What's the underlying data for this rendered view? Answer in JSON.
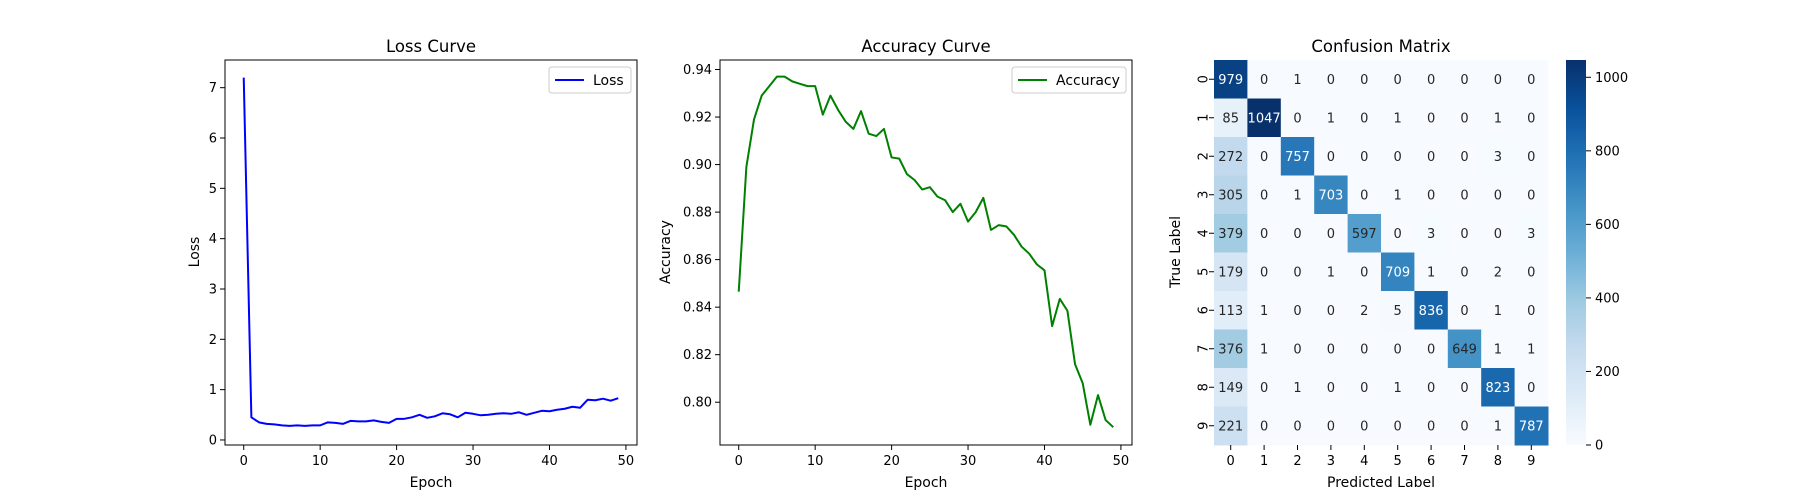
{
  "chart_data": [
    {
      "type": "line",
      "title": "Loss Curve",
      "xlabel": "Epoch",
      "ylabel": "Loss",
      "xlim": [
        -2.45,
        51.45
      ],
      "ylim": [
        -0.1,
        7.55
      ],
      "xticks": [
        0,
        10,
        20,
        30,
        40,
        50
      ],
      "yticks": [
        0,
        1,
        2,
        3,
        4,
        5,
        6,
        7
      ],
      "legend_position": "upper right",
      "grid": false,
      "series": [
        {
          "name": "Loss",
          "color": "#0000ff",
          "x": [
            0,
            1,
            2,
            3,
            4,
            5,
            6,
            7,
            8,
            9,
            10,
            11,
            12,
            13,
            14,
            15,
            16,
            17,
            18,
            19,
            20,
            21,
            22,
            23,
            24,
            25,
            26,
            27,
            28,
            29,
            30,
            31,
            32,
            33,
            34,
            35,
            36,
            37,
            38,
            39,
            40,
            41,
            42,
            43,
            44,
            45,
            46,
            47,
            48,
            49
          ],
          "y": [
            7.2,
            0.45,
            0.35,
            0.32,
            0.31,
            0.29,
            0.28,
            0.29,
            0.28,
            0.29,
            0.29,
            0.35,
            0.34,
            0.32,
            0.38,
            0.37,
            0.37,
            0.39,
            0.36,
            0.34,
            0.42,
            0.42,
            0.45,
            0.5,
            0.44,
            0.47,
            0.53,
            0.51,
            0.45,
            0.54,
            0.52,
            0.49,
            0.5,
            0.52,
            0.53,
            0.52,
            0.55,
            0.5,
            0.54,
            0.58,
            0.57,
            0.6,
            0.62,
            0.66,
            0.64,
            0.8,
            0.79,
            0.82,
            0.78,
            0.83
          ]
        }
      ]
    },
    {
      "type": "line",
      "title": "Accuracy Curve",
      "xlabel": "Epoch",
      "ylabel": "Accuracy",
      "xlim": [
        -2.45,
        51.45
      ],
      "ylim": [
        0.782,
        0.944
      ],
      "xticks": [
        0,
        10,
        20,
        30,
        40,
        50
      ],
      "yticks": [
        0.8,
        0.82,
        0.84,
        0.86,
        0.88,
        0.9,
        0.92,
        0.94
      ],
      "ytick_labels": [
        "0.80",
        "0.82",
        "0.84",
        "0.86",
        "0.88",
        "0.90",
        "0.92",
        "0.94"
      ],
      "legend_position": "upper right",
      "grid": false,
      "series": [
        {
          "name": "Accuracy",
          "color": "#008000",
          "x": [
            0,
            1,
            2,
            3,
            4,
            5,
            6,
            7,
            8,
            9,
            10,
            11,
            12,
            13,
            14,
            15,
            16,
            17,
            18,
            19,
            20,
            21,
            22,
            23,
            24,
            25,
            26,
            27,
            28,
            29,
            30,
            31,
            32,
            33,
            34,
            35,
            36,
            37,
            38,
            39,
            40,
            41,
            42,
            43,
            44,
            45,
            46,
            47,
            48,
            49
          ],
          "y": [
            0.8465,
            0.899,
            0.919,
            0.929,
            0.933,
            0.937,
            0.937,
            0.935,
            0.934,
            0.933,
            0.933,
            0.921,
            0.929,
            0.923,
            0.918,
            0.915,
            0.9225,
            0.913,
            0.912,
            0.915,
            0.903,
            0.9025,
            0.896,
            0.8935,
            0.8895,
            0.8905,
            0.8865,
            0.885,
            0.88,
            0.8835,
            0.876,
            0.88,
            0.886,
            0.8725,
            0.8745,
            0.874,
            0.8705,
            0.8655,
            0.8625,
            0.858,
            0.8555,
            0.832,
            0.8435,
            0.8385,
            0.816,
            0.808,
            0.7905,
            0.803,
            0.7925,
            0.7895
          ]
        }
      ]
    },
    {
      "type": "heatmap",
      "title": "Confusion Matrix",
      "xlabel": "Predicted Label",
      "ylabel": "True Label",
      "x_categories": [
        "0",
        "1",
        "2",
        "3",
        "4",
        "5",
        "6",
        "7",
        "8",
        "9"
      ],
      "y_categories": [
        "0",
        "1",
        "2",
        "3",
        "4",
        "5",
        "6",
        "7",
        "8",
        "9"
      ],
      "values": [
        [
          979,
          0,
          1,
          0,
          0,
          0,
          0,
          0,
          0,
          0
        ],
        [
          85,
          1047,
          0,
          1,
          0,
          1,
          0,
          0,
          1,
          0
        ],
        [
          272,
          0,
          757,
          0,
          0,
          0,
          0,
          0,
          3,
          0
        ],
        [
          305,
          0,
          1,
          703,
          0,
          1,
          0,
          0,
          0,
          0
        ],
        [
          379,
          0,
          0,
          0,
          597,
          0,
          3,
          0,
          0,
          3
        ],
        [
          179,
          0,
          0,
          1,
          0,
          709,
          1,
          0,
          2,
          0
        ],
        [
          113,
          1,
          0,
          0,
          2,
          5,
          836,
          0,
          1,
          0
        ],
        [
          376,
          1,
          0,
          0,
          0,
          0,
          0,
          649,
          1,
          1
        ],
        [
          149,
          0,
          1,
          0,
          0,
          1,
          0,
          0,
          823,
          0
        ],
        [
          221,
          0,
          0,
          0,
          0,
          0,
          0,
          0,
          1,
          787
        ]
      ],
      "colormap": "Blues",
      "vmin": 0,
      "vmax": 1047,
      "colorbar_ticks": [
        0,
        200,
        400,
        600,
        800,
        1000
      ],
      "colorbar_stops": [
        "#f7fbff",
        "#deebf7",
        "#c6dbef",
        "#9ecae1",
        "#6baed6",
        "#4292c6",
        "#2171b5",
        "#08519c",
        "#08306b"
      ]
    }
  ]
}
